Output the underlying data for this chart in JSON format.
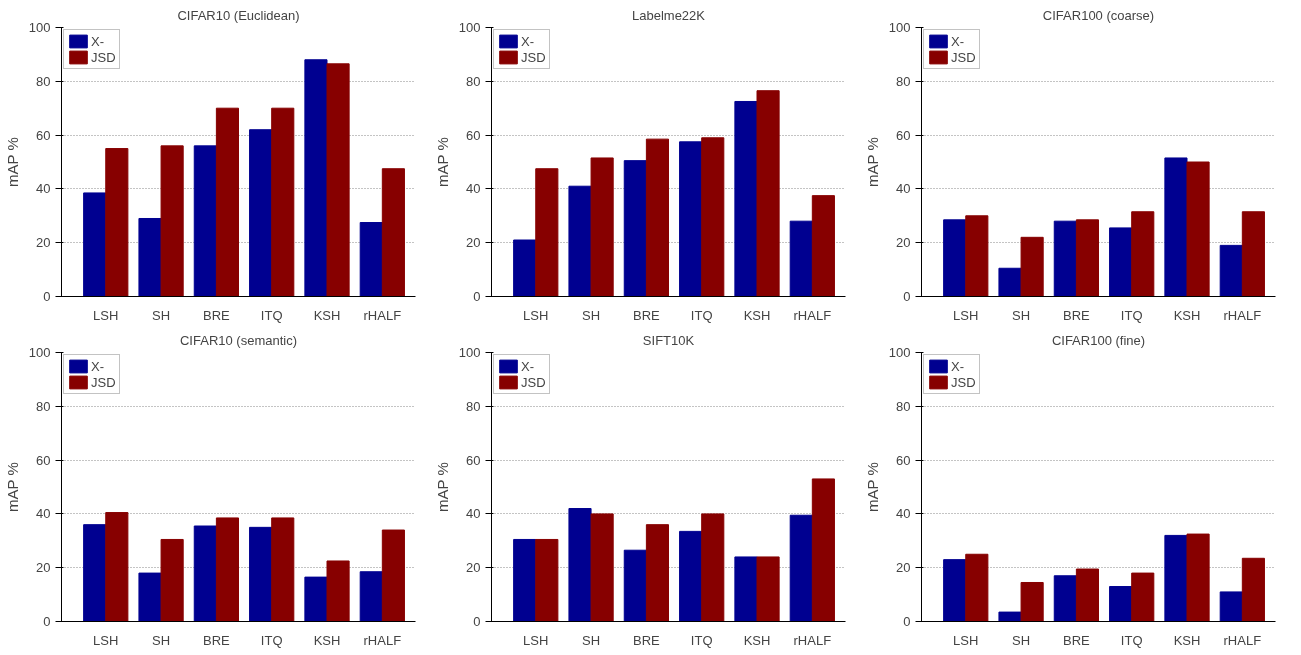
{
  "chart_data": [
    {
      "type": "bar",
      "title": "CIFAR10 (Euclidean)",
      "ylabel": "mAP %",
      "categories": [
        "LSH",
        "SH",
        "BRE",
        "ITQ",
        "KSH",
        "rHALF"
      ],
      "ylim": [
        0,
        100
      ],
      "yticks": [
        0,
        20,
        40,
        60,
        80,
        100
      ],
      "grid": "y",
      "legend": "top left",
      "series": [
        {
          "name": "X-",
          "color": "#000090",
          "values": [
            38.5,
            29,
            56,
            62,
            88,
            27.5
          ]
        },
        {
          "name": "JSD",
          "color": "#870000",
          "values": [
            55,
            56,
            70,
            70,
            86.5,
            47.5
          ]
        }
      ]
    },
    {
      "type": "bar",
      "title": "Labelme22K",
      "ylabel": "mAP %",
      "categories": [
        "LSH",
        "SH",
        "BRE",
        "ITQ",
        "KSH",
        "rHALF"
      ],
      "ylim": [
        0,
        100
      ],
      "yticks": [
        0,
        20,
        40,
        60,
        80,
        100
      ],
      "grid": "y",
      "legend": "top left",
      "series": [
        {
          "name": "X-",
          "color": "#000090",
          "values": [
            21,
            41,
            50.5,
            57.5,
            72.5,
            28
          ]
        },
        {
          "name": "JSD",
          "color": "#870000",
          "values": [
            47.5,
            51.5,
            58.5,
            59,
            76.5,
            37.5
          ]
        }
      ]
    },
    {
      "type": "bar",
      "title": "CIFAR100 (coarse)",
      "ylabel": "mAP %",
      "categories": [
        "LSH",
        "SH",
        "BRE",
        "ITQ",
        "KSH",
        "rHALF"
      ],
      "ylim": [
        0,
        100
      ],
      "yticks": [
        0,
        20,
        40,
        60,
        80,
        100
      ],
      "grid": "y",
      "legend": "top left",
      "series": [
        {
          "name": "X-",
          "color": "#000090",
          "values": [
            28.5,
            10.5,
            28,
            25.5,
            51.5,
            19
          ]
        },
        {
          "name": "JSD",
          "color": "#870000",
          "values": [
            30,
            22,
            28.5,
            31.5,
            50,
            31.5
          ]
        }
      ]
    },
    {
      "type": "bar",
      "title": "CIFAR10 (semantic)",
      "ylabel": "mAP %",
      "categories": [
        "LSH",
        "SH",
        "BRE",
        "ITQ",
        "KSH",
        "rHALF"
      ],
      "ylim": [
        0,
        100
      ],
      "yticks": [
        0,
        20,
        40,
        60,
        80,
        100
      ],
      "grid": "y",
      "legend": "top left",
      "series": [
        {
          "name": "X-",
          "color": "#000090",
          "values": [
            36,
            18,
            35.5,
            35,
            16.5,
            18.5
          ]
        },
        {
          "name": "JSD",
          "color": "#870000",
          "values": [
            40.5,
            30.5,
            38.5,
            38.5,
            22.5,
            34
          ]
        }
      ]
    },
    {
      "type": "bar",
      "title": "SIFT10K",
      "ylabel": "mAP %",
      "categories": [
        "LSH",
        "SH",
        "BRE",
        "ITQ",
        "KSH",
        "rHALF"
      ],
      "ylim": [
        0,
        100
      ],
      "yticks": [
        0,
        20,
        40,
        60,
        80,
        100
      ],
      "grid": "y",
      "legend": "top left",
      "series": [
        {
          "name": "X-",
          "color": "#000090",
          "values": [
            30.5,
            42,
            26.5,
            33.5,
            24,
            39.5
          ]
        },
        {
          "name": "JSD",
          "color": "#870000",
          "values": [
            30.5,
            40,
            36,
            40,
            24,
            53
          ]
        }
      ]
    },
    {
      "type": "bar",
      "title": "CIFAR100 (fine)",
      "ylabel": "mAP %",
      "categories": [
        "LSH",
        "SH",
        "BRE",
        "ITQ",
        "KSH",
        "rHALF"
      ],
      "ylim": [
        0,
        100
      ],
      "yticks": [
        0,
        20,
        40,
        60,
        80,
        100
      ],
      "grid": "y",
      "legend": "top left",
      "series": [
        {
          "name": "X-",
          "color": "#000090",
          "values": [
            23,
            3.5,
            17,
            13,
            32,
            11
          ]
        },
        {
          "name": "JSD",
          "color": "#870000",
          "values": [
            25,
            14.5,
            19.5,
            18,
            32.5,
            23.5
          ]
        }
      ]
    }
  ]
}
